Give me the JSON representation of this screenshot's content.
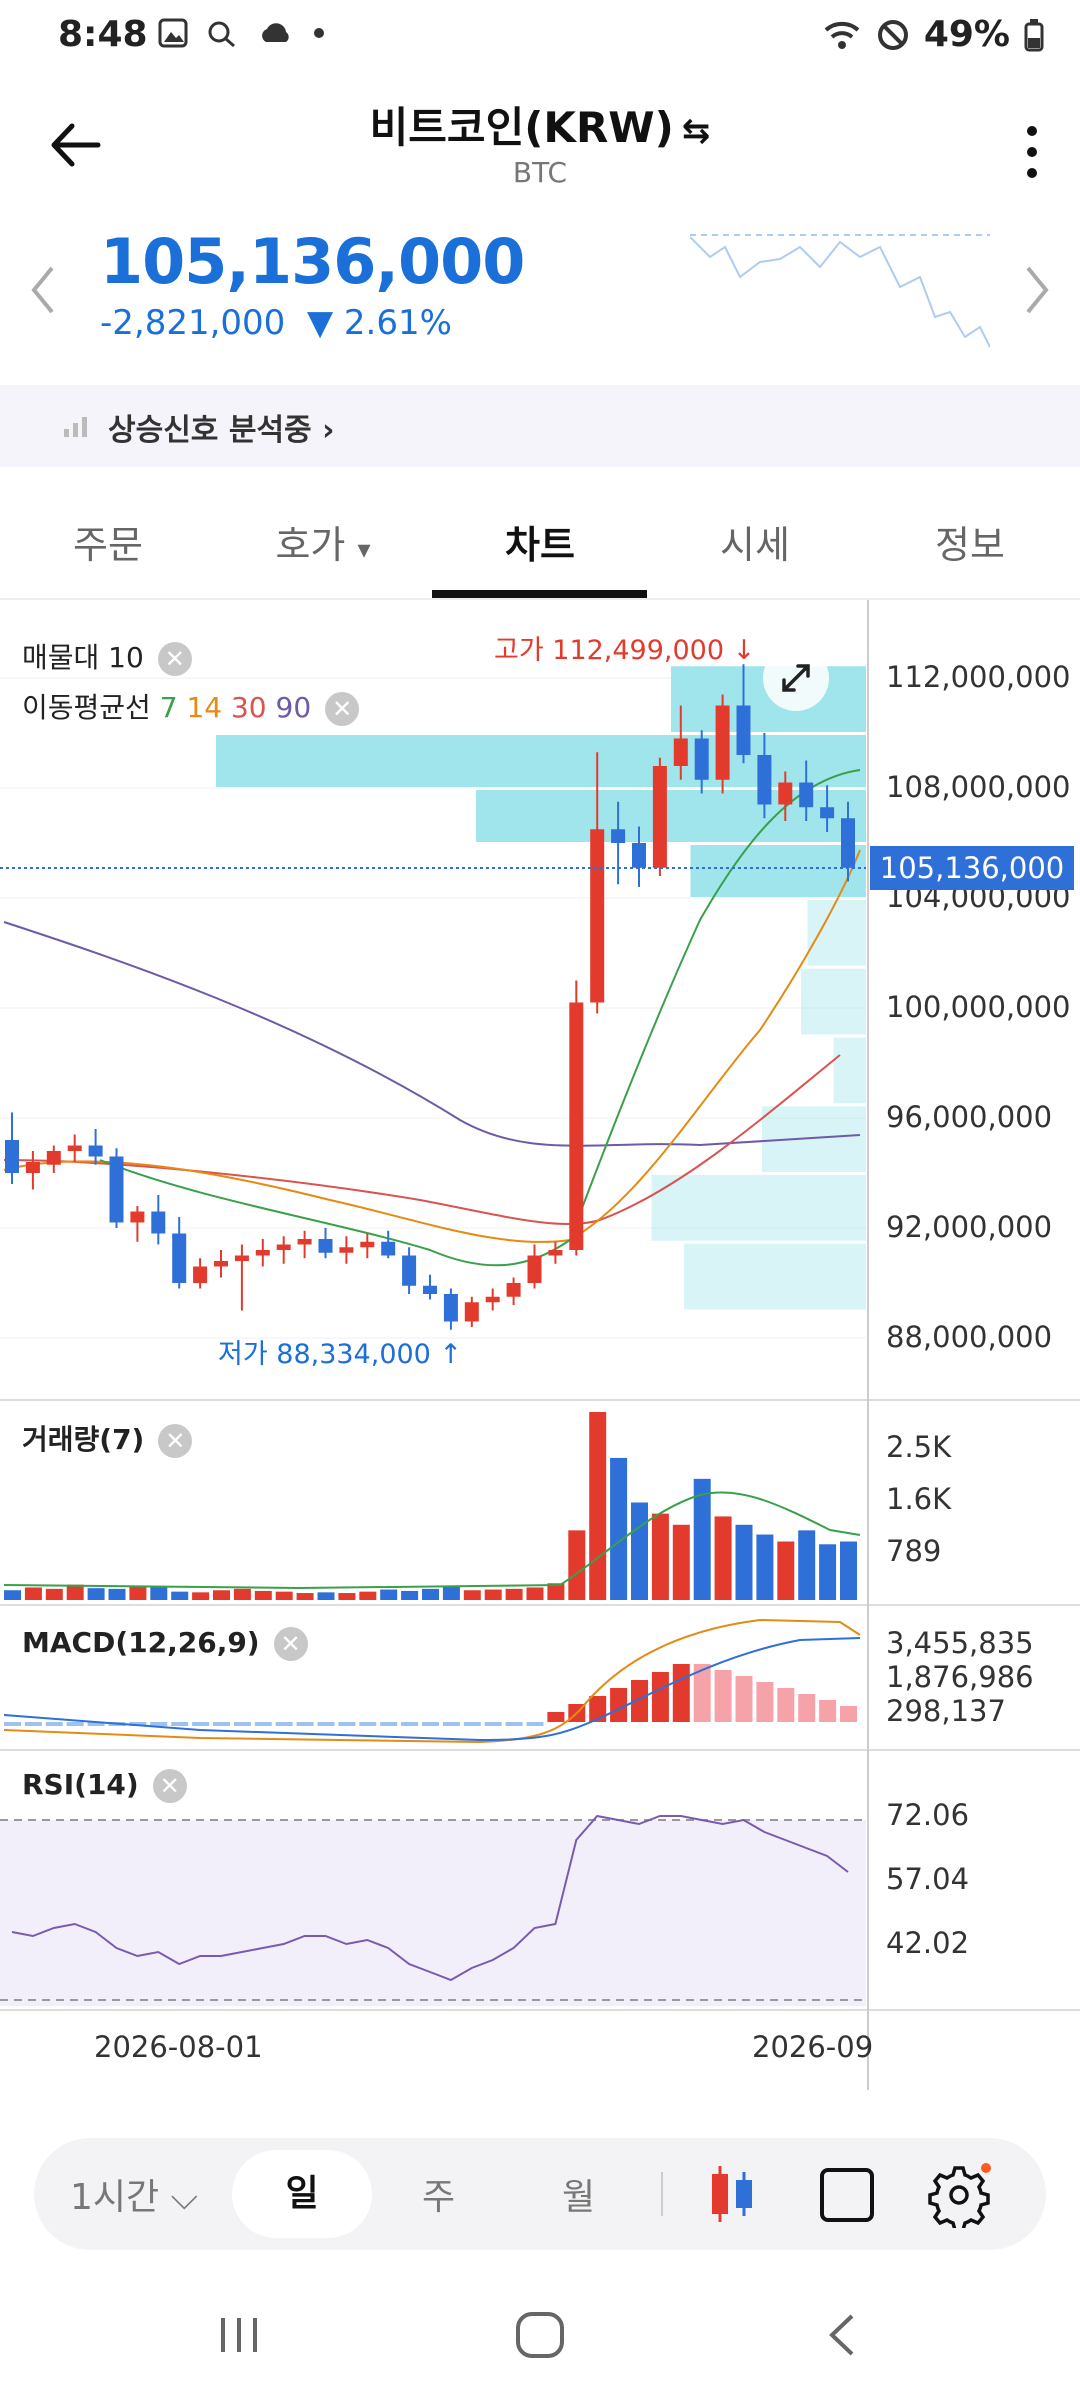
{
  "status": {
    "time": "8:48",
    "battery": "49%"
  },
  "header": {
    "title": "비트코인(KRW)",
    "swap_glyph": "⇆",
    "subtitle": "BTC"
  },
  "price": {
    "current": "105,136,000",
    "change_abs": "-2,821,000",
    "change_pct": "▼ 2.61%"
  },
  "signal": {
    "label": "상승신호 분석중 ›"
  },
  "tabs": [
    "주문",
    "호가",
    "차트",
    "시세",
    "정보"
  ],
  "active_tab": "차트",
  "chart": {
    "volume_profile_label": "매물대 10",
    "ma_label": "이동평균선",
    "ma_periods": [
      {
        "label": "7",
        "color": "#3aa04a"
      },
      {
        "label": "14",
        "color": "#e58a13"
      },
      {
        "label": "30",
        "color": "#d9534f"
      },
      {
        "label": "90",
        "color": "#6f5aa8"
      }
    ],
    "high_label": "고가 112,499,000 ↓",
    "low_label": "저가 88,334,000 ↑",
    "y_ticks": [
      "112,000,000",
      "108,000,000",
      "104,000,000",
      "100,000,000",
      "96,000,000",
      "92,000,000",
      "88,000,000"
    ],
    "current_price_tag": "105,136,000",
    "volume": {
      "label": "거래량(7)",
      "ticks": [
        "2.5K",
        "1.6K",
        "789"
      ]
    },
    "macd": {
      "label": "MACD(12,26,9)",
      "ticks": [
        "3,455,835",
        "1,876,986",
        "298,137"
      ]
    },
    "rsi": {
      "label": "RSI(14)",
      "ticks": [
        "72.06",
        "57.04",
        "42.02"
      ]
    },
    "x_ticks": [
      "2026-08-01",
      "2026-09"
    ],
    "colors": {
      "up": "#e23b2e",
      "down": "#2f6fd8",
      "profile": "#8fe0e8"
    }
  },
  "bottom": {
    "interval": "1시간 ⌵",
    "periods": [
      "일",
      "주",
      "월"
    ],
    "selected_period": "일"
  },
  "chart_data": {
    "type": "candlestick",
    "y_range": [
      87000000,
      114000000
    ],
    "candles": [
      [
        95.2,
        96.2,
        93.6,
        94.0
      ],
      [
        94.0,
        94.8,
        93.4,
        94.4
      ],
      [
        94.3,
        95.0,
        94.0,
        94.8
      ],
      [
        94.8,
        95.4,
        94.4,
        95.0
      ],
      [
        95.0,
        95.6,
        94.3,
        94.6
      ],
      [
        94.6,
        94.9,
        92.0,
        92.2
      ],
      [
        92.2,
        92.8,
        91.5,
        92.6
      ],
      [
        92.6,
        93.2,
        91.4,
        91.8
      ],
      [
        91.8,
        92.4,
        89.8,
        90.0
      ],
      [
        90.0,
        90.9,
        89.8,
        90.6
      ],
      [
        90.6,
        91.2,
        90.2,
        90.8
      ],
      [
        90.8,
        91.4,
        89.0,
        91.0
      ],
      [
        91.0,
        91.6,
        90.6,
        91.2
      ],
      [
        91.2,
        91.7,
        90.7,
        91.4
      ],
      [
        91.4,
        91.9,
        90.9,
        91.6
      ],
      [
        91.6,
        92.0,
        90.9,
        91.1
      ],
      [
        91.1,
        91.7,
        90.7,
        91.3
      ],
      [
        91.3,
        91.8,
        90.9,
        91.5
      ],
      [
        91.5,
        91.9,
        90.9,
        91.0
      ],
      [
        91.0,
        91.3,
        89.6,
        89.9
      ],
      [
        89.9,
        90.3,
        89.4,
        89.6
      ],
      [
        89.6,
        89.8,
        88.3,
        88.6
      ],
      [
        88.6,
        89.5,
        88.4,
        89.3
      ],
      [
        89.3,
        89.8,
        89.0,
        89.5
      ],
      [
        89.5,
        90.2,
        89.2,
        90.0
      ],
      [
        90.0,
        91.4,
        89.8,
        91.0
      ],
      [
        91.0,
        91.5,
        90.7,
        91.2
      ],
      [
        91.2,
        101.0,
        91.0,
        100.2
      ],
      [
        100.2,
        109.3,
        99.8,
        106.5
      ],
      [
        106.5,
        107.5,
        104.5,
        106.0
      ],
      [
        106.0,
        106.6,
        104.4,
        105.1
      ],
      [
        105.1,
        109.1,
        104.8,
        108.8
      ],
      [
        108.8,
        111.0,
        108.3,
        109.8
      ],
      [
        109.8,
        110.1,
        107.8,
        108.3
      ],
      [
        108.3,
        111.4,
        107.8,
        111.0
      ],
      [
        111.0,
        112.5,
        108.9,
        109.2
      ],
      [
        109.2,
        110.0,
        106.9,
        107.4
      ],
      [
        107.4,
        108.6,
        106.8,
        108.2
      ],
      [
        108.2,
        109.0,
        106.8,
        107.3
      ],
      [
        107.3,
        108.1,
        106.4,
        106.9
      ],
      [
        106.9,
        107.5,
        104.6,
        105.1
      ]
    ],
    "volume": [
      70,
      90,
      80,
      110,
      85,
      80,
      100,
      90,
      60,
      55,
      70,
      80,
      65,
      60,
      50,
      55,
      50,
      60,
      75,
      65,
      80,
      100,
      70,
      75,
      80,
      90,
      120,
      500,
      1350,
      1020,
      700,
      620,
      540,
      870,
      600,
      540,
      470,
      420,
      500,
      400,
      420
    ],
    "rsi": [
      44,
      43,
      45,
      46,
      44,
      40,
      38,
      39,
      36,
      38,
      38,
      39,
      40,
      41,
      43,
      43,
      41,
      42,
      40,
      36,
      34,
      32,
      35,
      37,
      40,
      45,
      46,
      67,
      73,
      72,
      71,
      73,
      73,
      72,
      71,
      72,
      69,
      67,
      65,
      63,
      59
    ],
    "series": [
      {
        "name": "7",
        "color": "#3aa04a"
      },
      {
        "name": "14",
        "color": "#e58a13"
      },
      {
        "name": "30",
        "color": "#d9534f"
      },
      {
        "name": "90",
        "color": "#6f5aa8"
      }
    ],
    "volume_profile": [
      {
        "price_from": 110000000,
        "price_to": 112500000,
        "strength": 0.3
      },
      {
        "price_from": 108000000,
        "price_to": 110000000,
        "strength": 1.0
      },
      {
        "price_from": 106000000,
        "price_to": 108000000,
        "strength": 0.6
      },
      {
        "price_from": 104000000,
        "price_to": 106000000,
        "strength": 0.27
      },
      {
        "price_from": 101500000,
        "price_to": 104000000,
        "strength": 0.09
      },
      {
        "price_from": 99000000,
        "price_to": 101500000,
        "strength": 0.1
      },
      {
        "price_from": 96500000,
        "price_to": 99000000,
        "strength": 0.05
      },
      {
        "price_from": 94000000,
        "price_to": 96500000,
        "strength": 0.16
      },
      {
        "price_from": 91500000,
        "price_to": 94000000,
        "strength": 0.33
      },
      {
        "price_from": 89000000,
        "price_to": 91500000,
        "strength": 0.28
      }
    ]
  }
}
